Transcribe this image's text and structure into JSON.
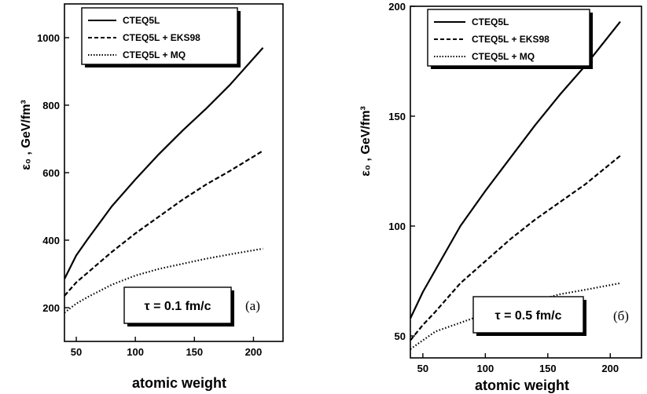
{
  "chart_data": [
    {
      "type": "line",
      "xlabel": "atomic weight",
      "ylabel": "ε₀ , GeV/fm³",
      "xlim": [
        40,
        225
      ],
      "ylim": [
        100,
        1100
      ],
      "xticks": [
        50,
        100,
        150,
        200
      ],
      "yticks": [
        200,
        400,
        600,
        800,
        1000
      ],
      "x": [
        40,
        50,
        60,
        80,
        100,
        120,
        140,
        160,
        180,
        208
      ],
      "series": [
        {
          "name": "CTEQ5L",
          "style": "solid",
          "values": [
            285,
            355,
            405,
            500,
            580,
            655,
            725,
            790,
            860,
            970
          ]
        },
        {
          "name": "CTEQ5L + EKS98",
          "style": "dashed",
          "values": [
            235,
            275,
            305,
            365,
            420,
            470,
            520,
            565,
            605,
            665
          ]
        },
        {
          "name": "CTEQ5L + MQ",
          "style": "dotted",
          "values": [
            185,
            212,
            232,
            268,
            295,
            315,
            330,
            345,
            358,
            375
          ]
        }
      ],
      "annotation": "τ = 0.1 fm/c",
      "panel_label": "(a)",
      "legend": "top-left"
    },
    {
      "type": "line",
      "xlabel": "atomic weight",
      "ylabel": "ε₀ , GeV/fm³",
      "xlim": [
        40,
        225
      ],
      "ylim": [
        40,
        200
      ],
      "xticks": [
        50,
        100,
        150,
        200
      ],
      "yticks": [
        50,
        100,
        150,
        200
      ],
      "x": [
        40,
        50,
        60,
        80,
        100,
        120,
        140,
        160,
        180,
        208
      ],
      "series": [
        {
          "name": "CTEQ5L",
          "style": "solid",
          "values": [
            58,
            70,
            80,
            100,
            116,
            131,
            146,
            160,
            173,
            193
          ]
        },
        {
          "name": "CTEQ5L + EKS98",
          "style": "dashed",
          "values": [
            48,
            55,
            61,
            74,
            84,
            94,
            103,
            111,
            119,
            132
          ]
        },
        {
          "name": "CTEQ5L + MQ",
          "style": "dotted",
          "values": [
            44,
            48,
            52,
            56,
            60,
            64,
            66,
            69,
            71,
            74
          ]
        }
      ],
      "annotation": "τ = 0.5 fm/c",
      "panel_label": "(б)",
      "legend": "top-left"
    }
  ]
}
